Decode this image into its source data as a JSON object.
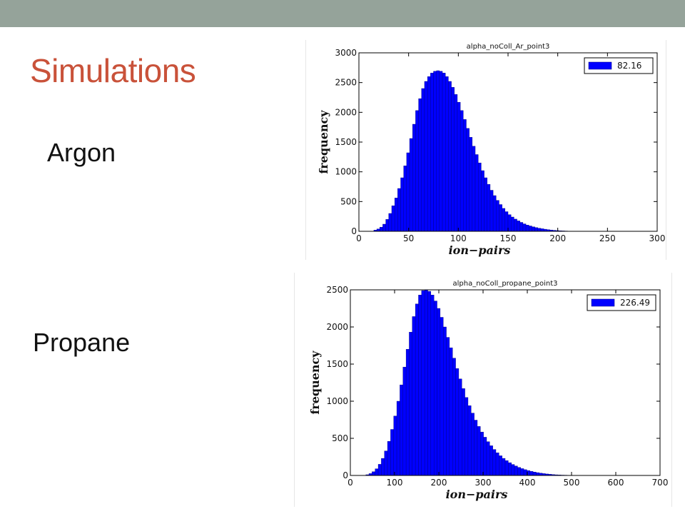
{
  "slide": {
    "title": "Simulations",
    "title_color": "#c9523a",
    "topbar_color": "#95a39a",
    "labels": [
      "Argon",
      "Propane"
    ]
  },
  "chart_data": [
    {
      "type": "bar",
      "title": "alpha_noColl_Ar_point3",
      "xlabel": "ion−pairs",
      "ylabel": "frequency",
      "xlim": [
        0,
        300
      ],
      "ylim": [
        0,
        3000
      ],
      "xticks": [
        "0",
        "50",
        "100",
        "150",
        "200",
        "250",
        "300"
      ],
      "yticks": [
        "0",
        "500",
        "1000",
        "1500",
        "2000",
        "2500",
        "3000"
      ],
      "legend": {
        "label": "82.16",
        "position": "top-right"
      },
      "bar_color": "#0000ff",
      "bin_width": 3,
      "bin_start": 15,
      "values": [
        20,
        40,
        70,
        120,
        200,
        300,
        430,
        560,
        720,
        900,
        1100,
        1320,
        1560,
        1800,
        2030,
        2230,
        2400,
        2520,
        2600,
        2660,
        2690,
        2700,
        2690,
        2660,
        2600,
        2520,
        2420,
        2300,
        2170,
        2030,
        1880,
        1730,
        1580,
        1430,
        1290,
        1150,
        1020,
        900,
        790,
        690,
        600,
        520,
        450,
        385,
        330,
        280,
        240,
        205,
        175,
        150,
        125,
        105,
        90,
        75,
        62,
        52,
        43,
        35,
        28,
        22,
        17,
        13,
        10,
        7,
        5,
        3
      ]
    },
    {
      "type": "bar",
      "title": "alpha_noColl_propane_point3",
      "xlabel": "ion−pairs",
      "ylabel": "frequency",
      "xlim": [
        0,
        700
      ],
      "ylim": [
        0,
        2500
      ],
      "xticks": [
        "0",
        "100",
        "200",
        "300",
        "400",
        "500",
        "600",
        "700"
      ],
      "yticks": [
        "0",
        "500",
        "1000",
        "1500",
        "2000",
        "2500"
      ],
      "legend": {
        "label": "226.49",
        "position": "top-right"
      },
      "bar_color": "#0000ff",
      "bin_width": 7,
      "bin_start": 35,
      "values": [
        10,
        25,
        50,
        90,
        150,
        230,
        330,
        460,
        620,
        800,
        1000,
        1220,
        1460,
        1700,
        1930,
        2140,
        2310,
        2430,
        2490,
        2500,
        2480,
        2430,
        2350,
        2250,
        2130,
        2000,
        1860,
        1720,
        1580,
        1440,
        1300,
        1170,
        1050,
        940,
        840,
        745,
        660,
        585,
        515,
        455,
        400,
        350,
        305,
        265,
        230,
        200,
        172,
        148,
        127,
        108,
        92,
        78,
        66,
        55,
        46,
        38,
        31,
        25,
        20,
        16,
        12,
        9,
        7,
        5,
        4,
        3,
        2,
        2,
        1
      ]
    }
  ]
}
